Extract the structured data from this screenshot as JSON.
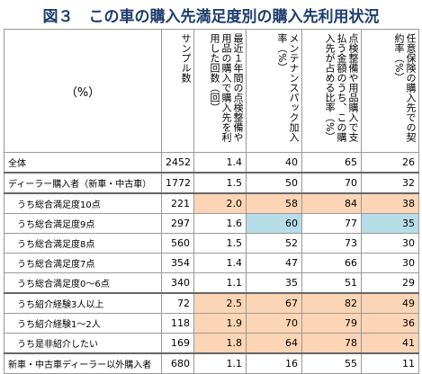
{
  "title": "図３　この車の購入先満足度別の購入先利用状況",
  "table": {
    "corner": "（%）",
    "headers": [
      "サンプル数",
      "最近１年間の点検整備や用品の購入で購入先を利用した回数（回）",
      "メンテナンスパック加入率（%）",
      "点検整備や用品購入で支払う金額のうち、この購入先が占める比率（%）",
      "任意保険の購入先での契約率（%）"
    ],
    "rows": [
      [
        "全体",
        "2452",
        "1.4",
        "40",
        "65",
        "26"
      ],
      [
        "ディーラー購入者（新車・中古車）",
        "1772",
        "1.5",
        "50",
        "70",
        "32"
      ],
      [
        "うち総合満足度10点",
        "221",
        "2.0",
        "58",
        "84",
        "38"
      ],
      [
        "うち総合満足度9点",
        "297",
        "1.6",
        "60",
        "77",
        "35"
      ],
      [
        "うち総合満足度8点",
        "560",
        "1.5",
        "52",
        "73",
        "30"
      ],
      [
        "うち総合満足度7点",
        "354",
        "1.4",
        "47",
        "66",
        "30"
      ],
      [
        "うち総合満足度0～6点",
        "340",
        "1.1",
        "35",
        "51",
        "29"
      ],
      [
        "うち紹介経験3人以上",
        "72",
        "2.5",
        "67",
        "82",
        "49"
      ],
      [
        "うち紹介経験1～2人",
        "118",
        "1.9",
        "70",
        "79",
        "36"
      ],
      [
        "うち是非紹介したい",
        "169",
        "1.8",
        "64",
        "78",
        "41"
      ],
      [
        "新車・中古車ディーラー以外購入者",
        "680",
        "1.1",
        "16",
        "55",
        "11"
      ]
    ],
    "cell_colors": [
      [
        null,
        null,
        null,
        null,
        null,
        null
      ],
      [
        null,
        null,
        null,
        null,
        null,
        null
      ],
      [
        null,
        null,
        "#fbd5b5",
        "#fbd5b5",
        "#fbd5b5",
        "#fbd5b5"
      ],
      [
        null,
        null,
        null,
        "#b7dde8",
        null,
        "#b7dde8"
      ],
      [
        null,
        null,
        null,
        null,
        null,
        null
      ],
      [
        null,
        null,
        null,
        null,
        null,
        null
      ],
      [
        null,
        null,
        null,
        null,
        null,
        null
      ],
      [
        null,
        null,
        "#fbd5b5",
        "#fbd5b5",
        "#fbd5b5",
        "#fbd5b5"
      ],
      [
        null,
        null,
        "#fbd5b5",
        "#fbd5b5",
        "#fbd5b5",
        "#fbd5b5"
      ],
      [
        null,
        null,
        "#fbd5b5",
        "#fbd5b5",
        "#fbd5b5",
        "#fbd5b5"
      ],
      [
        null,
        null,
        null,
        null,
        null,
        null
      ]
    ]
  }
}
